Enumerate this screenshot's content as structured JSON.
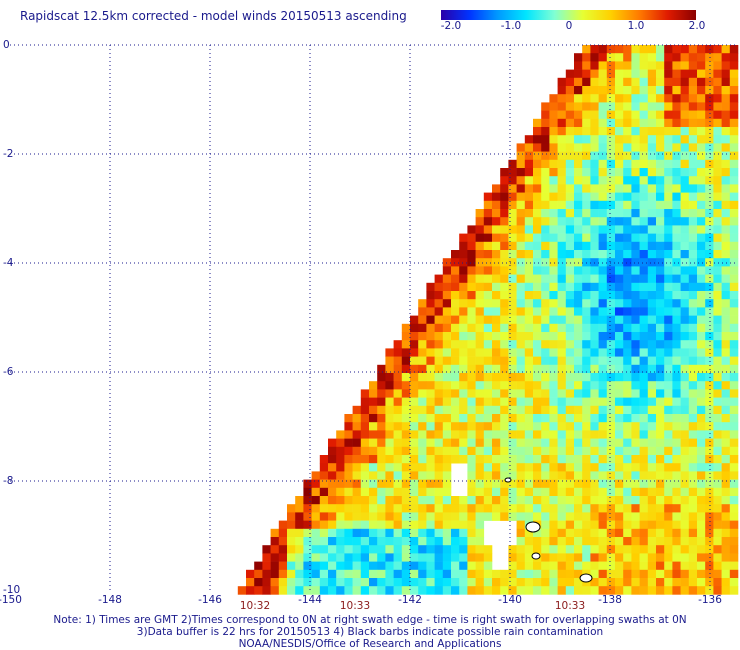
{
  "title": "Rapidscat 12.5km corrected - model winds 20150513 ascending",
  "colorbar": {
    "labels": [
      "-2.0",
      "-1.0",
      "0",
      "1.0",
      "2.0"
    ],
    "stops": [
      "#2a00a8",
      "#0033ff",
      "#0099ff",
      "#00e5ff",
      "#7fffd4",
      "#e6ff33",
      "#ffd000",
      "#ff7a00",
      "#e01b00",
      "#8a0000"
    ]
  },
  "axes": {
    "x_ticks": [
      "-150",
      "-148",
      "-146",
      "-144",
      "-142",
      "-140",
      "-138",
      "-136"
    ],
    "y_ticks": [
      "0",
      "-2",
      "-4",
      "-6",
      "-8",
      "-10"
    ],
    "lon_range": [
      -150,
      -135.5
    ],
    "lat_range": [
      -10,
      0
    ]
  },
  "time_labels": [
    {
      "text": "10:32",
      "lon": -145.1
    },
    {
      "text": "10:33",
      "lon": -143.1
    },
    {
      "text": "10:33",
      "lon": -138.8
    }
  ],
  "notes": [
    "Note: 1) Times are GMT 2)Times correspond to 0N at right swath edge - time is right swath for overlapping swaths at 0N",
    "3)Data buffer is 22 hrs for 20150513 4) Black barbs indicate possible rain contamination",
    "NOAA/NESDIS/Office of Research and Applications"
  ]
}
